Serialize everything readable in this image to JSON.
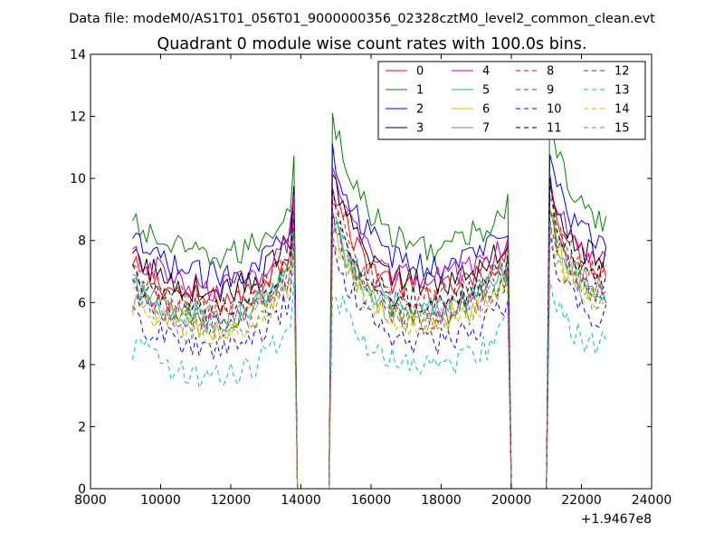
{
  "figure": {
    "suptitle": "Data file: modeM0/AS1T01_056T01_9000000356_02328cztM0_level2_common_clean.evt"
  },
  "chart_data": {
    "type": "line",
    "title": "Quadrant 0 module wise count rates with 100.0s bins.",
    "xlabel": "",
    "ylabel": "",
    "x_offset_label": "+1.9467e8",
    "xlim": [
      8000,
      24000
    ],
    "ylim": [
      0,
      14
    ],
    "xticks": [
      8000,
      10000,
      12000,
      14000,
      16000,
      18000,
      20000,
      22000,
      24000
    ],
    "yticks": [
      0,
      2,
      4,
      6,
      8,
      10,
      12,
      14
    ],
    "grid": false,
    "legend": {
      "placement": "top-right",
      "columns": 4
    },
    "segments": [
      {
        "start": 9200,
        "end": 13800,
        "noise_seed": 0
      },
      {
        "start": 14900,
        "end": 19900,
        "noise_seed": 1
      },
      {
        "start": 21100,
        "end": 22700,
        "noise_seed": 2
      }
    ],
    "gaps": [
      [
        13900,
        14800
      ],
      [
        20000,
        21000
      ]
    ],
    "series": [
      {
        "name": "0",
        "color": "#ff0000",
        "dash": "solid",
        "base": 6.8,
        "peak": 9.8
      },
      {
        "name": "1",
        "color": "#008000",
        "dash": "solid",
        "base": 8.2,
        "peak": 12.1
      },
      {
        "name": "2",
        "color": "#0000ff",
        "dash": "solid",
        "base": 7.6,
        "peak": 11.0
      },
      {
        "name": "3",
        "color": "#000000",
        "dash": "solid",
        "base": 7.1,
        "peak": 9.9
      },
      {
        "name": "4",
        "color": "#bf00bf",
        "dash": "solid",
        "base": 7.2,
        "peak": 10.0
      },
      {
        "name": "5",
        "color": "#00bfbf",
        "dash": "solid",
        "base": 6.2,
        "peak": 8.6
      },
      {
        "name": "6",
        "color": "#bfbf00",
        "dash": "solid",
        "base": 5.9,
        "peak": 8.5
      },
      {
        "name": "7",
        "color": "#808080",
        "dash": "solid",
        "base": 6.3,
        "peak": 8.9
      },
      {
        "name": "8",
        "color": "#ff0000",
        "dash": "dashed",
        "base": 6.6,
        "peak": 9.3
      },
      {
        "name": "9",
        "color": "#008000",
        "dash": "dashed",
        "base": 6.1,
        "peak": 8.8
      },
      {
        "name": "10",
        "color": "#0000ff",
        "dash": "dashed",
        "base": 5.2,
        "peak": 7.8
      },
      {
        "name": "11",
        "color": "#000000",
        "dash": "dashed",
        "base": 6.5,
        "peak": 9.4
      },
      {
        "name": "12",
        "color": "#bf00bf",
        "dash": "dashed",
        "base": 6.0,
        "peak": 8.6
      },
      {
        "name": "13",
        "color": "#00bfbf",
        "dash": "dashed",
        "base": 4.3,
        "peak": 6.6
      },
      {
        "name": "14",
        "color": "#bfbf00",
        "dash": "dashed",
        "base": 5.7,
        "peak": 8.2
      },
      {
        "name": "15",
        "color": "#808080",
        "dash": "dashed",
        "base": 5.8,
        "peak": 8.3
      }
    ]
  }
}
